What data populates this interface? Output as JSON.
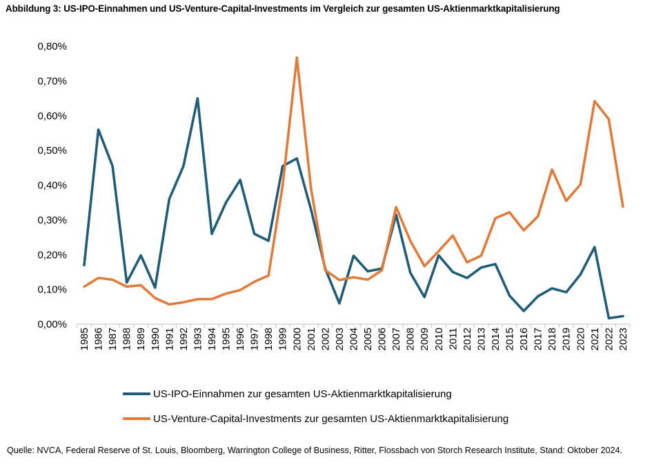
{
  "title": "Abbildung 3: US-IPO-Einnahmen und US-Venture-Capital-Investments im Vergleich zur gesamten US-Aktienmarktkapitalisierung",
  "source": "Quelle: NVCA, Federal Reserve of St. Louis, Bloomberg, Warrington College of Business, Ritter, Flossbach von Storch Research Institute, Stand: Oktober 2024.",
  "chart_data": {
    "type": "line",
    "title": "",
    "xlabel": "",
    "ylabel": "",
    "ylim": [
      0,
      0.8
    ],
    "yticks": [
      0.0,
      0.1,
      0.2,
      0.3,
      0.4,
      0.5,
      0.6,
      0.7,
      0.8
    ],
    "ytick_labels": [
      "0,00%",
      "0,10%",
      "0,20%",
      "0,30%",
      "0,40%",
      "0,50%",
      "0,60%",
      "0,70%",
      "0,80%"
    ],
    "grid": false,
    "legend_position": "bottom",
    "categories": [
      "1985",
      "1986",
      "1987",
      "1988",
      "1989",
      "1990",
      "1991",
      "1992",
      "1993",
      "1994",
      "1995",
      "1996",
      "1997",
      "1998",
      "1999",
      "2000",
      "2001",
      "2002",
      "2003",
      "2004",
      "2005",
      "2006",
      "2007",
      "2008",
      "2009",
      "2010",
      "2011",
      "2012",
      "2013",
      "2014",
      "2015",
      "2016",
      "2017",
      "2018",
      "2019",
      "2020",
      "2021",
      "2022",
      "2023"
    ],
    "series": [
      {
        "name": "US-IPO-Einnahmen zur gesamten US-Aktienmarktkapitalisierung",
        "color": "#1f5c78",
        "values": [
          0.17,
          0.56,
          0.455,
          0.12,
          0.198,
          0.105,
          0.36,
          0.455,
          0.65,
          0.26,
          0.35,
          0.415,
          0.26,
          0.24,
          0.455,
          0.477,
          0.33,
          0.16,
          0.06,
          0.197,
          0.152,
          0.16,
          0.315,
          0.148,
          0.078,
          0.198,
          0.15,
          0.133,
          0.163,
          0.173,
          0.082,
          0.038,
          0.08,
          0.103,
          0.092,
          0.143,
          0.222,
          0.017,
          0.023
        ]
      },
      {
        "name": "US-Venture-Capital-Investments zur gesamten US-Aktienmarktkapitalisierung",
        "color": "#e07b39",
        "values": [
          0.108,
          0.133,
          0.128,
          0.108,
          0.112,
          0.075,
          0.057,
          0.063,
          0.072,
          0.072,
          0.088,
          0.098,
          0.122,
          0.14,
          0.4,
          0.767,
          0.39,
          0.155,
          0.127,
          0.135,
          0.128,
          0.155,
          0.337,
          0.24,
          0.167,
          0.21,
          0.255,
          0.178,
          0.197,
          0.305,
          0.322,
          0.27,
          0.31,
          0.445,
          0.355,
          0.402,
          0.642,
          0.59,
          0.338
        ]
      }
    ]
  }
}
